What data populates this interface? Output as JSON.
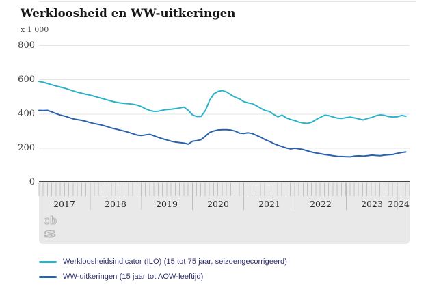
{
  "header": {
    "title": "Werkloosheid en WW-uitkeringen"
  },
  "chart": {
    "unit": "x 1 000",
    "y_ticks": [
      "800",
      "600",
      "400",
      "200",
      "0"
    ],
    "x_years": [
      "2017",
      "2018",
      "2019",
      "2020",
      "2021",
      "2022",
      "2023",
      "2024"
    ],
    "colors": {
      "grid": "#e4e4e4",
      "axis_band_bg": "#e9e9e9",
      "axis_zero_line": "#474747",
      "month_tick": "#c2c2c2",
      "year_divider": "#bdbdbd",
      "series_ilo": "#2cb2c8",
      "series_ww": "#2a62ab"
    }
  },
  "legend": {
    "items": [
      {
        "label": "Werkloosheidsindicator (ILO) (15 tot 75 jaar, seizoengecorrigeerd)",
        "color": "#2cb2c8"
      },
      {
        "label": "WW-uitkeringen (15 jaar tot AOW-leeftijd)",
        "color": "#2a62ab"
      }
    ]
  },
  "logo": {
    "name": "cbs-logo",
    "text_top": "cb",
    "text_bottom": "s"
  },
  "chart_data": {
    "type": "line",
    "title": "Werkloosheid en WW-uitkeringen",
    "unit_label": "x 1 000",
    "ylim": [
      0,
      800
    ],
    "y_gridlines": [
      200,
      400,
      600,
      800
    ],
    "x_frequency": "monthly",
    "x_start": "2017-01",
    "x_end": "2024-03",
    "x_axis_tick_labels": [
      "2017",
      "2018",
      "2019",
      "2020",
      "2021",
      "2022",
      "2023",
      "2024"
    ],
    "grid": true,
    "legend_position": "bottom",
    "series": [
      {
        "name": "Werkloosheidsindicator (ILO) (15 tot 75 jaar, seizoengecorrigeerd)",
        "color": "#2cb2c8",
        "values": [
          590,
          585,
          578,
          570,
          563,
          557,
          551,
          543,
          535,
          527,
          521,
          515,
          510,
          503,
          496,
          489,
          482,
          475,
          469,
          465,
          462,
          460,
          457,
          452,
          443,
          430,
          420,
          415,
          416,
          422,
          426,
          428,
          431,
          435,
          440,
          421,
          395,
          385,
          386,
          420,
          480,
          518,
          532,
          537,
          528,
          512,
          498,
          488,
          472,
          465,
          460,
          448,
          433,
          420,
          415,
          398,
          384,
          393,
          377,
          368,
          361,
          352,
          347,
          345,
          353,
          368,
          381,
          393,
          390,
          382,
          376,
          374,
          379,
          382,
          377,
          371,
          365,
          374,
          380,
          390,
          395,
          392,
          385,
          382,
          384,
          392,
          387
        ]
      },
      {
        "name": "WW-uitkeringen (15 jaar tot AOW-leeftijd)",
        "color": "#2a62ab",
        "values": [
          421,
          420,
          421,
          412,
          402,
          394,
          388,
          380,
          372,
          367,
          363,
          357,
          350,
          344,
          339,
          333,
          326,
          318,
          312,
          306,
          300,
          293,
          285,
          277,
          274,
          278,
          281,
          272,
          263,
          255,
          248,
          241,
          236,
          233,
          230,
          224,
          241,
          244,
          250,
          270,
          292,
          301,
          307,
          308,
          308,
          306,
          300,
          288,
          286,
          290,
          286,
          275,
          264,
          250,
          240,
          228,
          218,
          210,
          201,
          196,
          200,
          196,
          192,
          184,
          177,
          172,
          168,
          163,
          160,
          156,
          153,
          152,
          151,
          150,
          155,
          156,
          154,
          157,
          160,
          158,
          157,
          160,
          162,
          164,
          170,
          175,
          178
        ]
      }
    ]
  }
}
